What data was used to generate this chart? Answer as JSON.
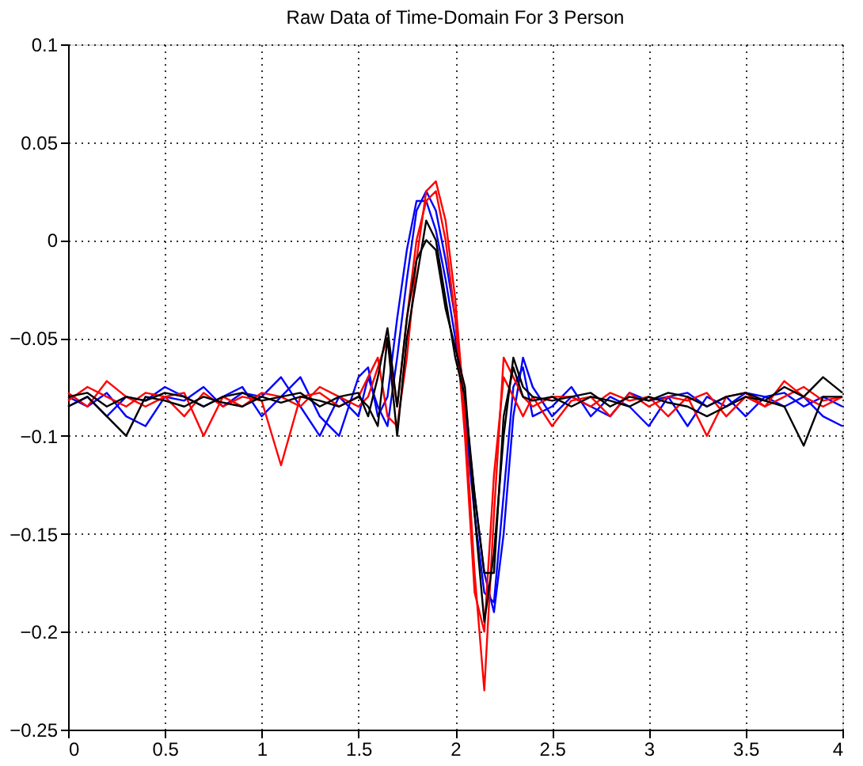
{
  "chart_data": {
    "type": "line",
    "title": "Raw Data of Time-Domain For 3 Person",
    "x": [
      0,
      0.1,
      0.2,
      0.3,
      0.4,
      0.5,
      0.6,
      0.7,
      0.8,
      0.9,
      1.0,
      1.1,
      1.2,
      1.3,
      1.4,
      1.5,
      1.55,
      1.6,
      1.65,
      1.7,
      1.75,
      1.8,
      1.85,
      1.9,
      1.95,
      2.0,
      2.05,
      2.1,
      2.15,
      2.2,
      2.25,
      2.3,
      2.35,
      2.4,
      2.5,
      2.6,
      2.7,
      2.8,
      2.9,
      3.0,
      3.1,
      3.2,
      3.3,
      3.4,
      3.5,
      3.6,
      3.7,
      3.8,
      3.9,
      4.0
    ],
    "series": [
      {
        "color": "#0000ff",
        "values": [
          -0.08,
          -0.085,
          -0.078,
          -0.09,
          -0.095,
          -0.08,
          -0.082,
          -0.075,
          -0.085,
          -0.078,
          -0.08,
          -0.07,
          -0.085,
          -0.1,
          -0.08,
          -0.09,
          -0.07,
          -0.085,
          -0.095,
          -0.06,
          -0.02,
          0.015,
          0.025,
          0.015,
          -0.01,
          -0.04,
          -0.085,
          -0.13,
          -0.17,
          -0.19,
          -0.15,
          -0.09,
          -0.06,
          -0.075,
          -0.09,
          -0.08,
          -0.085,
          -0.09,
          -0.078,
          -0.082,
          -0.08,
          -0.095,
          -0.08,
          -0.085,
          -0.078,
          -0.08,
          -0.085,
          -0.08,
          -0.09,
          -0.095
        ]
      },
      {
        "color": "#0000ff",
        "values": [
          -0.085,
          -0.08,
          -0.09,
          -0.08,
          -0.082,
          -0.075,
          -0.08,
          -0.085,
          -0.08,
          -0.075,
          -0.09,
          -0.08,
          -0.07,
          -0.09,
          -0.1,
          -0.07,
          -0.065,
          -0.09,
          -0.08,
          -0.04,
          -0.005,
          0.02,
          0.02,
          0.005,
          -0.02,
          -0.05,
          -0.09,
          -0.14,
          -0.18,
          -0.185,
          -0.13,
          -0.075,
          -0.065,
          -0.09,
          -0.085,
          -0.075,
          -0.09,
          -0.08,
          -0.085,
          -0.095,
          -0.08,
          -0.078,
          -0.085,
          -0.08,
          -0.09,
          -0.08,
          -0.078,
          -0.085,
          -0.08,
          -0.085
        ]
      },
      {
        "color": "#ff0000",
        "values": [
          -0.082,
          -0.075,
          -0.08,
          -0.085,
          -0.078,
          -0.08,
          -0.09,
          -0.078,
          -0.085,
          -0.08,
          -0.082,
          -0.115,
          -0.08,
          -0.078,
          -0.085,
          -0.08,
          -0.07,
          -0.06,
          -0.09,
          -0.095,
          -0.06,
          -0.01,
          0.025,
          0.03,
          0.01,
          -0.03,
          -0.09,
          -0.17,
          -0.23,
          -0.14,
          -0.06,
          -0.07,
          -0.08,
          -0.085,
          -0.08,
          -0.08,
          -0.085,
          -0.078,
          -0.082,
          -0.08,
          -0.09,
          -0.08,
          -0.1,
          -0.08,
          -0.078,
          -0.085,
          -0.08,
          -0.075,
          -0.082,
          -0.08
        ]
      },
      {
        "color": "#ff0000",
        "values": [
          -0.078,
          -0.085,
          -0.072,
          -0.08,
          -0.085,
          -0.08,
          -0.078,
          -0.1,
          -0.08,
          -0.085,
          -0.078,
          -0.08,
          -0.085,
          -0.075,
          -0.08,
          -0.085,
          -0.08,
          -0.065,
          -0.05,
          -0.085,
          -0.04,
          0.0,
          0.02,
          0.025,
          0.0,
          -0.04,
          -0.1,
          -0.18,
          -0.2,
          -0.12,
          -0.07,
          -0.08,
          -0.09,
          -0.08,
          -0.095,
          -0.082,
          -0.08,
          -0.09,
          -0.078,
          -0.085,
          -0.08,
          -0.082,
          -0.078,
          -0.09,
          -0.08,
          -0.085,
          -0.072,
          -0.08,
          -0.085,
          -0.08
        ]
      },
      {
        "color": "#000000",
        "values": [
          -0.08,
          -0.078,
          -0.085,
          -0.08,
          -0.082,
          -0.078,
          -0.08,
          -0.085,
          -0.08,
          -0.078,
          -0.082,
          -0.08,
          -0.078,
          -0.085,
          -0.08,
          -0.078,
          -0.09,
          -0.07,
          -0.045,
          -0.085,
          -0.04,
          -0.01,
          0.0,
          -0.005,
          -0.035,
          -0.055,
          -0.075,
          -0.14,
          -0.195,
          -0.16,
          -0.1,
          -0.06,
          -0.075,
          -0.08,
          -0.082,
          -0.08,
          -0.078,
          -0.085,
          -0.08,
          -0.082,
          -0.078,
          -0.08,
          -0.085,
          -0.08,
          -0.078,
          -0.082,
          -0.075,
          -0.08,
          -0.07,
          -0.078
        ]
      },
      {
        "color": "#000000",
        "values": [
          -0.085,
          -0.08,
          -0.09,
          -0.1,
          -0.08,
          -0.082,
          -0.085,
          -0.08,
          -0.083,
          -0.085,
          -0.08,
          -0.083,
          -0.08,
          -0.082,
          -0.085,
          -0.08,
          -0.085,
          -0.095,
          -0.05,
          -0.1,
          -0.05,
          -0.02,
          0.01,
          0.0,
          -0.03,
          -0.06,
          -0.08,
          -0.13,
          -0.17,
          -0.17,
          -0.09,
          -0.065,
          -0.08,
          -0.082,
          -0.08,
          -0.085,
          -0.08,
          -0.082,
          -0.085,
          -0.08,
          -0.083,
          -0.085,
          -0.09,
          -0.085,
          -0.08,
          -0.082,
          -0.085,
          -0.105,
          -0.08,
          -0.08
        ]
      }
    ],
    "xlim": [
      0,
      4
    ],
    "xticks": [
      0,
      0.5,
      1,
      1.5,
      2,
      2.5,
      3,
      3.5,
      4
    ],
    "ylim": [
      -0.25,
      0.1
    ],
    "yticks": [
      -0.25,
      -0.2,
      -0.15,
      -0.1,
      -0.05,
      0,
      0.05,
      0.1
    ],
    "grid": true,
    "legend": false,
    "line_style": "solid",
    "marker": "none"
  }
}
